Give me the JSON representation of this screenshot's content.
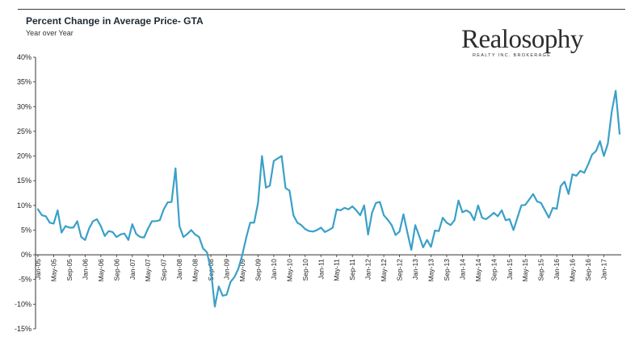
{
  "header": {
    "title": "Percent Change in Average Price- GTA",
    "subtitle": "Year over Year"
  },
  "logo": {
    "name": "Realosophy",
    "tagline": "REALTY INC. BROKERAGE"
  },
  "colors": {
    "line": "#3aa0c8",
    "axis": "#333333"
  },
  "chart_data": {
    "type": "line",
    "title": "Percent Change in Average Price- GTA",
    "subtitle": "Year over Year",
    "xlabel": "",
    "ylabel": "",
    "ylim": [
      -15,
      40
    ],
    "y_ticks": [
      "40%",
      "35%",
      "30%",
      "25%",
      "20%",
      "15%",
      "10%",
      "5%",
      "0%",
      "-5%",
      "-10%",
      "-15%"
    ],
    "x_tick_labels": [
      "Jan-05",
      "May-05",
      "Sep-05",
      "Jan-06",
      "May-06",
      "Sep-06",
      "Jan-07",
      "May-07",
      "Sep-07",
      "Jan-08",
      "May-08",
      "Sep-08",
      "Jan-09",
      "May-09",
      "Sep-09",
      "Jan-10",
      "May-10",
      "Sep-10",
      "Jan-11",
      "May-11",
      "Sep-11",
      "Jan-12",
      "May-12",
      "Sep-12",
      "Jan-13",
      "May-13",
      "Sep-13",
      "Jan-14",
      "May-14",
      "Sep-14",
      "Jan-15",
      "May-15",
      "Sep-15",
      "Jan-16",
      "May-16",
      "Sep-16",
      "Jan-17"
    ],
    "x_start": "Jan-05",
    "grid": false,
    "legend": "none",
    "series": [
      {
        "values": [
          9.2,
          8.0,
          7.8,
          6.5,
          6.3,
          9.0,
          4.5,
          5.8,
          5.5,
          5.5,
          6.8,
          3.6,
          3.0,
          5.3,
          6.8,
          7.2,
          5.8,
          3.8,
          4.8,
          4.6,
          3.6,
          4.1,
          4.3,
          3.0,
          6.2,
          4.2,
          3.6,
          3.5,
          5.3,
          6.8,
          6.8,
          7.0,
          9.2,
          10.6,
          10.7,
          17.5,
          5.8,
          3.6,
          4.2,
          5.0,
          4.1,
          3.6,
          1.3,
          0.5,
          -3.0,
          -10.5,
          -6.4,
          -8.3,
          -8.1,
          -5.5,
          -4.5,
          -2.8,
          0.0,
          3.5,
          6.5,
          6.5,
          10.5,
          20.0,
          13.6,
          14.0,
          19.0,
          19.5,
          20.0,
          13.5,
          13.0,
          8.0,
          6.5,
          6.0,
          5.2,
          4.8,
          4.7,
          5.0,
          5.5,
          4.6,
          5.0,
          5.5,
          9.2,
          9.0,
          9.5,
          9.2,
          9.8,
          9.0,
          8.0,
          10.0,
          4.1,
          8.5,
          10.5,
          10.7,
          8.0,
          7.1,
          6.0,
          4.0,
          4.7,
          8.2,
          4.5,
          1.0,
          6.0,
          3.8,
          1.5,
          3.0,
          1.6,
          4.9,
          4.8,
          7.5,
          6.5,
          6.0,
          7.0,
          11.0,
          8.6,
          9.0,
          8.5,
          7.0,
          10.0,
          7.5,
          7.2,
          7.8,
          8.5,
          7.8,
          9.0,
          7.0,
          7.2,
          5.0,
          7.5,
          10.0,
          10.1,
          11.2,
          12.3,
          10.8,
          10.5,
          9.0,
          7.5,
          9.5,
          9.3,
          13.9,
          14.8,
          12.3,
          16.3,
          16.0,
          17.0,
          16.6,
          18.3,
          20.3,
          21.0,
          23.0,
          20.0,
          22.5,
          29.0,
          33.2,
          24.5
        ]
      }
    ]
  }
}
